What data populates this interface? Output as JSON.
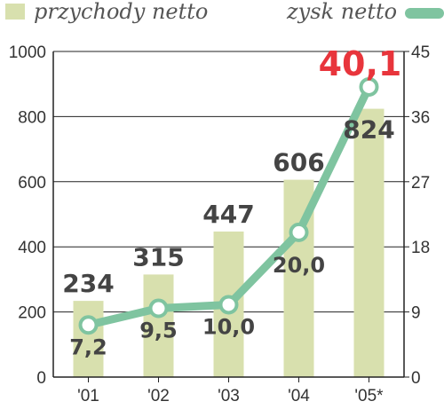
{
  "legend": {
    "revenue_label": "przychody netto",
    "profit_label": "zysk netto"
  },
  "colors": {
    "bar": "#d8e0ae",
    "line": "#7fc4a0",
    "highlight": "#e8353c",
    "grid": "#222222",
    "text": "#444444"
  },
  "chart_data": {
    "type": "bar+line",
    "categories": [
      "'01",
      "'02",
      "'03",
      "'04",
      "'05*"
    ],
    "series": [
      {
        "name": "przychody netto",
        "type": "bar",
        "axis": "left",
        "values": [
          234,
          315,
          447,
          606,
          824
        ],
        "labels": [
          "234",
          "315",
          "447",
          "606",
          "824"
        ]
      },
      {
        "name": "zysk netto",
        "type": "line",
        "axis": "right",
        "values": [
          7.2,
          9.5,
          10.0,
          20.0,
          40.1
        ],
        "labels": [
          "7,2",
          "9,5",
          "10,0",
          "20,0",
          "40,1"
        ]
      }
    ],
    "y_left": {
      "min": 0,
      "max": 1000,
      "ticks": [
        0,
        200,
        400,
        600,
        800,
        1000
      ]
    },
    "y_right": {
      "min": 0,
      "max": 45,
      "ticks": [
        0,
        9,
        18,
        27,
        36,
        45
      ]
    },
    "grid": true,
    "legend_position": "top"
  }
}
